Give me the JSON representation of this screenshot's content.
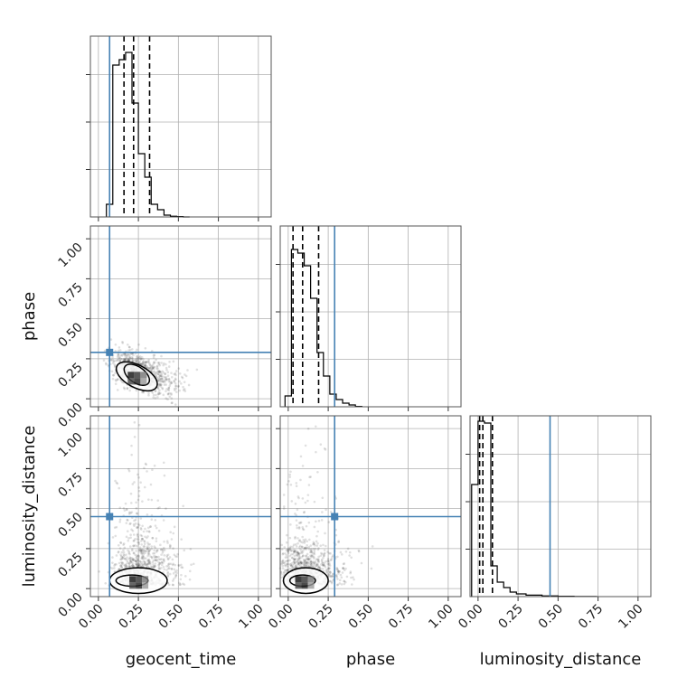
{
  "parameters": [
    "geocent_time",
    "phase",
    "luminosity_distance"
  ],
  "truth_color": "#4682b4",
  "chart_data": {
    "type": "corner",
    "params": [
      "geocent_time",
      "phase",
      "luminosity_distance"
    ],
    "range": [
      -0.05,
      1.08
    ],
    "ticks": [
      0.0,
      0.25,
      0.5,
      0.75,
      1.0
    ],
    "tick_labels": [
      "0.00",
      "0.25",
      "0.50",
      "0.75",
      "1.00"
    ],
    "truths": [
      0.07,
      0.29,
      0.45
    ],
    "histograms": [
      {
        "param": "geocent_time",
        "bin_edges": [
          0.05,
          0.09,
          0.13,
          0.17,
          0.21,
          0.25,
          0.29,
          0.33,
          0.37,
          0.41,
          0.45,
          0.49,
          0.53,
          0.57
        ],
        "counts": [
          0.07,
          0.84,
          0.87,
          0.91,
          0.63,
          0.35,
          0.22,
          0.07,
          0.04,
          0.01,
          0.004,
          0.002,
          0.0
        ],
        "quantiles": [
          0.16,
          0.22,
          0.32
        ]
      },
      {
        "param": "phase",
        "bin_edges": [
          -0.02,
          0.02,
          0.06,
          0.1,
          0.14,
          0.18,
          0.22,
          0.26,
          0.3,
          0.34,
          0.38,
          0.42,
          0.46
        ],
        "counts": [
          0.06,
          0.87,
          0.85,
          0.78,
          0.6,
          0.3,
          0.17,
          0.07,
          0.04,
          0.02,
          0.01,
          0.002
        ],
        "quantiles": [
          0.03,
          0.09,
          0.19
        ]
      },
      {
        "param": "luminosity_distance",
        "bin_edges": [
          -0.04,
          0.0,
          0.04,
          0.08,
          0.12,
          0.16,
          0.2,
          0.24,
          0.3,
          0.4,
          0.5,
          0.6,
          0.74
        ],
        "counts": [
          0.62,
          0.97,
          0.96,
          0.17,
          0.08,
          0.05,
          0.025,
          0.015,
          0.008,
          0.004,
          0.002,
          0.001
        ],
        "quantiles": [
          0.01,
          0.03,
          0.09
        ]
      }
    ],
    "scatter_pairs": [
      {
        "x": "geocent_time",
        "y": "phase",
        "center": [
          0.24,
          0.14
        ],
        "contours": [
          {
            "cx": 0.24,
            "cy": 0.15,
            "rx": 0.09,
            "ry": 0.05,
            "rotation_deg": 35
          },
          {
            "cx": 0.24,
            "cy": 0.14,
            "rx": 0.14,
            "ry": 0.07,
            "rotation_deg": 28
          }
        ]
      },
      {
        "x": "geocent_time",
        "y": "luminosity_distance",
        "center": [
          0.25,
          0.05
        ],
        "contours": [
          {
            "cx": 0.21,
            "cy": 0.05,
            "rx": 0.1,
            "ry": 0.035,
            "rotation_deg": 0
          },
          {
            "cx": 0.25,
            "cy": 0.05,
            "rx": 0.18,
            "ry": 0.08,
            "rotation_deg": 0
          }
        ]
      },
      {
        "x": "phase",
        "y": "luminosity_distance",
        "center": [
          0.1,
          0.05
        ],
        "contours": [
          {
            "cx": 0.09,
            "cy": 0.05,
            "rx": 0.08,
            "ry": 0.035,
            "rotation_deg": 0
          },
          {
            "cx": 0.11,
            "cy": 0.05,
            "rx": 0.14,
            "ry": 0.08,
            "rotation_deg": 0
          }
        ]
      }
    ]
  }
}
